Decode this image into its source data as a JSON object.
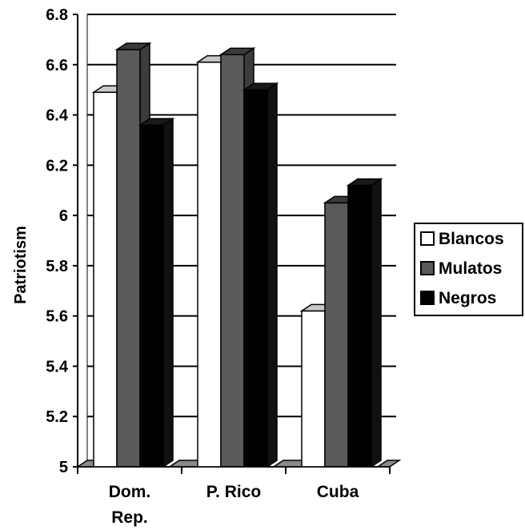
{
  "chart_data": {
    "type": "bar",
    "style": "3d-clustered",
    "title": "",
    "xlabel": "",
    "ylabel": "Patriotism",
    "ylim": [
      5,
      6.8
    ],
    "yticks": [
      "5",
      "5.2",
      "5.4",
      "5.6",
      "5.8",
      "6",
      "6.2",
      "6.4",
      "6.6",
      "6.8"
    ],
    "categories": [
      [
        "Dom.",
        "Rep."
      ],
      [
        "P. Rico"
      ],
      [
        "Cuba"
      ]
    ],
    "series": [
      {
        "name": "Blancos",
        "values": [
          6.49,
          6.61,
          5.62
        ],
        "color": "#ffffff"
      },
      {
        "name": "Mulatos",
        "values": [
          6.66,
          6.64,
          6.05
        ],
        "color": "#5a5a5a"
      },
      {
        "name": "Negros",
        "values": [
          6.36,
          6.5,
          6.12
        ],
        "color": "#000000"
      }
    ],
    "grid": true,
    "legend": "right"
  }
}
